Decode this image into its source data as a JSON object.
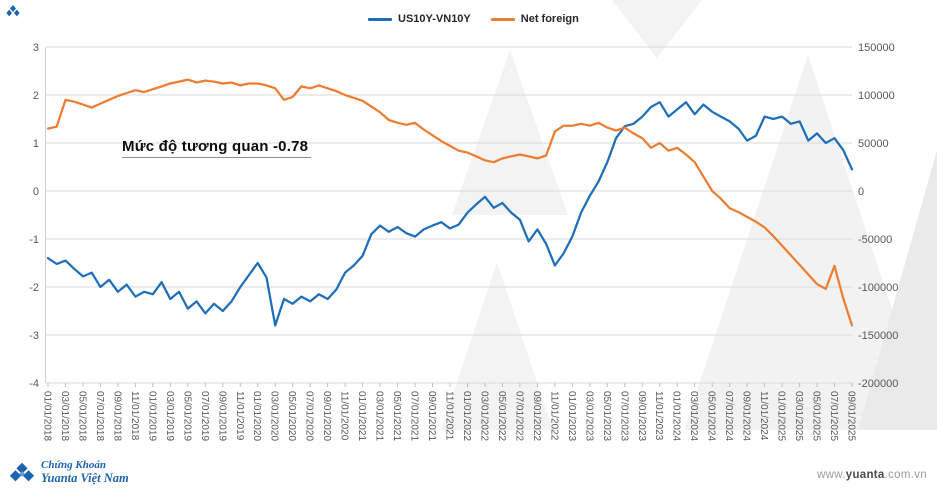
{
  "chart_data": {
    "type": "line",
    "title": "",
    "annotation": "Mức độ tương quan -0.78",
    "legend_position": "top-center",
    "grid": true,
    "label_every": 2,
    "x_labels": [
      "01/01/2018",
      "03/01/2018",
      "05/01/2018",
      "07/01/2018",
      "09/01/2018",
      "11/01/2018",
      "01/01/2019",
      "03/01/2019",
      "05/01/2019",
      "07/01/2019",
      "09/01/2019",
      "11/01/2019",
      "01/01/2020",
      "03/01/2020",
      "05/01/2020",
      "07/01/2020",
      "09/01/2020",
      "11/01/2020",
      "01/01/2021",
      "03/01/2021",
      "05/01/2021",
      "07/01/2021",
      "09/01/2021",
      "11/01/2021",
      "01/01/2022",
      "03/01/2022",
      "05/01/2022",
      "07/01/2022",
      "09/01/2022",
      "11/01/2022",
      "01/01/2023",
      "03/01/2023",
      "05/01/2023",
      "07/01/2023",
      "09/01/2023",
      "11/01/2023",
      "01/01/2024",
      "03/01/2024",
      "05/01/2024",
      "07/01/2024",
      "09/01/2024",
      "11/01/2024",
      "01/01/2025",
      "03/01/2025",
      "05/01/2025",
      "07/01/2025",
      "09/01/2025"
    ],
    "left_axis": {
      "ticks": [
        "3",
        "2",
        "1",
        "0",
        "-1",
        "-2",
        "-3",
        "-4"
      ],
      "min": -4,
      "max": 3
    },
    "right_axis": {
      "ticks": [
        "150000",
        "100000",
        "50000",
        "0",
        "-50000",
        "-100000",
        "-150000",
        "-200000"
      ],
      "min": -200000,
      "max": 150000
    },
    "series": [
      {
        "name": "US10Y-VN10Y",
        "axis": "left",
        "color": "#1f6fb8",
        "values": [
          -1.4,
          -1.52,
          -1.45,
          -1.62,
          -1.78,
          -1.7,
          -2.0,
          -1.85,
          -2.1,
          -1.95,
          -2.2,
          -2.1,
          -2.15,
          -1.9,
          -2.25,
          -2.1,
          -2.45,
          -2.3,
          -2.55,
          -2.35,
          -2.5,
          -2.3,
          -2.0,
          -1.75,
          -1.5,
          -1.8,
          -2.8,
          -2.25,
          -2.35,
          -2.2,
          -2.3,
          -2.15,
          -2.25,
          -2.05,
          -1.7,
          -1.55,
          -1.35,
          -0.9,
          -0.72,
          -0.85,
          -0.75,
          -0.88,
          -0.95,
          -0.8,
          -0.72,
          -0.65,
          -0.78,
          -0.7,
          -0.45,
          -0.28,
          -0.12,
          -0.35,
          -0.25,
          -0.45,
          -0.6,
          -1.05,
          -0.8,
          -1.1,
          -1.55,
          -1.3,
          -0.95,
          -0.45,
          -0.1,
          0.2,
          0.6,
          1.1,
          1.35,
          1.4,
          1.55,
          1.75,
          1.85,
          1.55,
          1.7,
          1.85,
          1.6,
          1.8,
          1.65,
          1.55,
          1.45,
          1.3,
          1.05,
          1.15,
          1.55,
          1.5,
          1.55,
          1.4,
          1.45,
          1.05,
          1.2,
          1.0,
          1.1,
          0.85,
          0.45
        ]
      },
      {
        "name": "Net foreign",
        "axis": "right",
        "color": "#ed7d31",
        "values": [
          65000,
          67000,
          95000,
          93000,
          90000,
          87000,
          91000,
          95000,
          99000,
          102000,
          105000,
          103000,
          106000,
          109000,
          112000,
          114000,
          116000,
          113000,
          115000,
          114000,
          112000,
          113000,
          110000,
          112000,
          112000,
          110000,
          107000,
          95000,
          98000,
          109000,
          107000,
          110000,
          107000,
          104000,
          100000,
          97000,
          94000,
          88000,
          82000,
          74000,
          71000,
          69000,
          71000,
          64000,
          58000,
          52000,
          47000,
          42000,
          40000,
          36000,
          32000,
          30000,
          34000,
          36000,
          38000,
          36000,
          34000,
          37000,
          62000,
          68000,
          68000,
          70000,
          68000,
          71000,
          66000,
          63000,
          66000,
          60000,
          55000,
          45000,
          50000,
          42000,
          45000,
          38000,
          30000,
          15000,
          0,
          -8000,
          -18000,
          -22000,
          -27000,
          -32000,
          -38000,
          -47000,
          -57000,
          -67000,
          -77000,
          -87000,
          -97000,
          -102000,
          -78000,
          -112000,
          -140000
        ]
      }
    ]
  },
  "footer": {
    "logo_line1": "Chứng Khoán",
    "logo_line2": "Yuanta Việt Nam",
    "website_prefix": "www.",
    "website_name": "yuanta",
    "website_suffix": ".com.vn"
  }
}
